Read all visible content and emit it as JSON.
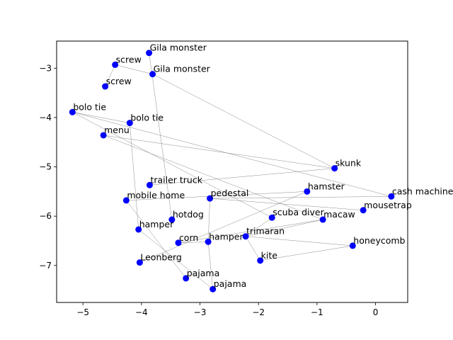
{
  "chart_data": {
    "type": "scatter",
    "title": "",
    "xlabel": "",
    "ylabel": "",
    "xlim": [
      -5.45,
      0.55
    ],
    "ylim": [
      -7.75,
      -2.45
    ],
    "xticks": [
      -5,
      -4,
      -3,
      -2,
      -1,
      0
    ],
    "yticks": [
      -3,
      -4,
      -5,
      -6,
      -7
    ],
    "xtick_labels": [
      "−5",
      "−4",
      "−3",
      "−2",
      "−1",
      "0"
    ],
    "ytick_labels": [
      "−3",
      "−4",
      "−5",
      "−6",
      "−7"
    ],
    "grid": false,
    "marker_color": "#0000ff",
    "edge_color": "#808080",
    "points": [
      {
        "label": "Gila monster",
        "x": -3.87,
        "y": -2.69
      },
      {
        "label": "Gila monster",
        "x": -3.81,
        "y": -3.12
      },
      {
        "label": "screw",
        "x": -4.45,
        "y": -2.93
      },
      {
        "label": "screw",
        "x": -4.62,
        "y": -3.37
      },
      {
        "label": "bolo tie",
        "x": -5.18,
        "y": -3.89
      },
      {
        "label": "bolo tie",
        "x": -4.2,
        "y": -4.11
      },
      {
        "label": "menu",
        "x": -4.65,
        "y": -4.36
      },
      {
        "label": "skunk",
        "x": -0.7,
        "y": -5.03
      },
      {
        "label": "trailer truck",
        "x": -3.86,
        "y": -5.37
      },
      {
        "label": "hamster",
        "x": -1.17,
        "y": -5.5
      },
      {
        "label": "cash machine",
        "x": 0.27,
        "y": -5.6
      },
      {
        "label": "mobile home",
        "x": -4.26,
        "y": -5.68
      },
      {
        "label": "pedestal",
        "x": -2.83,
        "y": -5.64
      },
      {
        "label": "mousetrap",
        "x": -0.21,
        "y": -5.88
      },
      {
        "label": "scuba diver",
        "x": -1.77,
        "y": -6.03
      },
      {
        "label": "macaw",
        "x": -0.9,
        "y": -6.07
      },
      {
        "label": "hotdog",
        "x": -3.48,
        "y": -6.07
      },
      {
        "label": "hamper",
        "x": -4.05,
        "y": -6.27
      },
      {
        "label": "trimaran",
        "x": -2.22,
        "y": -6.41
      },
      {
        "label": "corn",
        "x": -3.37,
        "y": -6.54
      },
      {
        "label": "hamper",
        "x": -2.86,
        "y": -6.52
      },
      {
        "label": "honeycomb",
        "x": -0.39,
        "y": -6.6
      },
      {
        "label": "kite",
        "x": -1.97,
        "y": -6.9
      },
      {
        "label": "Leonberg",
        "x": -4.03,
        "y": -6.94
      },
      {
        "label": "pajama",
        "x": -3.24,
        "y": -7.26
      },
      {
        "label": "pajama",
        "x": -2.78,
        "y": -7.48
      }
    ],
    "edges": [
      [
        0,
        16
      ],
      [
        2,
        1
      ],
      [
        2,
        3
      ],
      [
        1,
        7
      ],
      [
        4,
        5
      ],
      [
        4,
        14
      ],
      [
        5,
        17
      ],
      [
        6,
        7
      ],
      [
        6,
        15
      ],
      [
        7,
        8
      ],
      [
        9,
        11
      ],
      [
        9,
        23
      ],
      [
        10,
        12
      ],
      [
        11,
        24
      ],
      [
        12,
        13
      ],
      [
        12,
        20
      ],
      [
        14,
        18
      ],
      [
        15,
        18
      ],
      [
        15,
        19
      ],
      [
        17,
        25
      ],
      [
        18,
        21
      ],
      [
        18,
        22
      ],
      [
        19,
        20
      ],
      [
        20,
        25
      ],
      [
        21,
        22
      ],
      [
        10,
        4
      ]
    ]
  }
}
